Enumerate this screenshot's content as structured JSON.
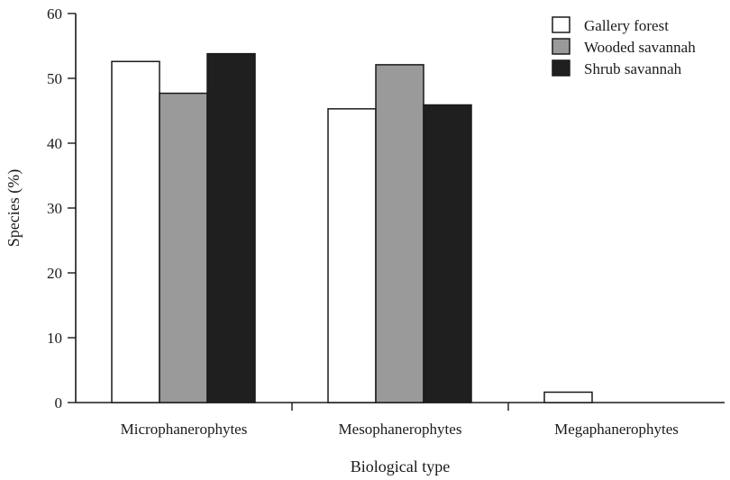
{
  "chart_data": {
    "type": "bar",
    "title": "",
    "xlabel": "Biological type",
    "ylabel": "Species (%)",
    "ylim": [
      0,
      60
    ],
    "yticks": [
      0,
      10,
      20,
      30,
      40,
      50,
      60
    ],
    "categories": [
      "Microphanerophytes",
      "Mesophanerophytes",
      "Megaphanerophytes"
    ],
    "series": [
      {
        "name": "Gallery forest",
        "color": "#ffffff",
        "values": [
          52.6,
          45.3,
          1.6
        ]
      },
      {
        "name": "Wooded savannah",
        "color": "#9a9a9a",
        "values": [
          47.7,
          52.1,
          0
        ]
      },
      {
        "name": "Shrub savannah",
        "color": "#1f1f1f",
        "values": [
          53.8,
          45.9,
          0
        ]
      }
    ],
    "legend_position": "top-right",
    "grid": false
  }
}
